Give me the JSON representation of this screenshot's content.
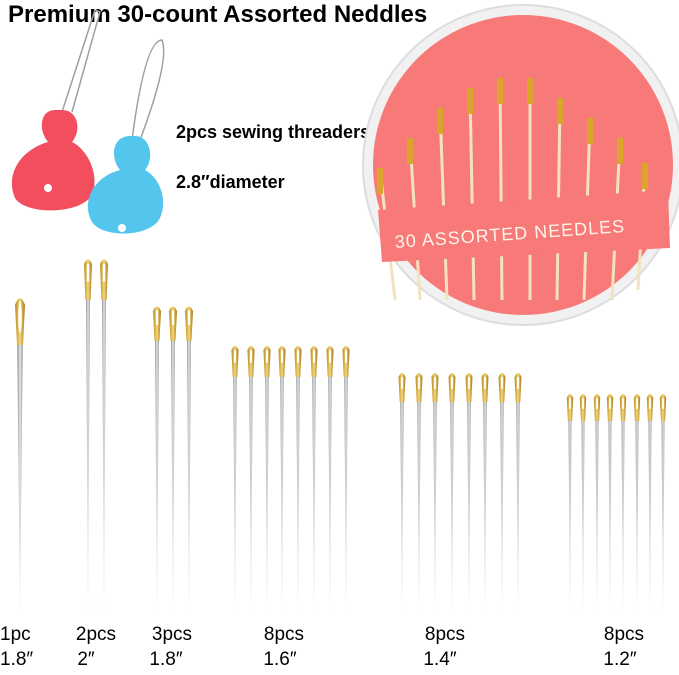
{
  "title": "Premium 30-count Assorted Neddles",
  "threaders_text": "2pcs sewing threaders",
  "diameter_text": "2.8″diameter",
  "case_label": "30 ASSORTED NEEDLES",
  "groups": [
    {
      "count": "1pc",
      "length": "1.8″"
    },
    {
      "count": "2pcs",
      "length": "2″"
    },
    {
      "count": "3pcs",
      "length": "1.8″"
    },
    {
      "count": "8pcs",
      "length": "1.6″"
    },
    {
      "count": "8pcs",
      "length": "1.4″"
    },
    {
      "count": "8pcs",
      "length": "1.2″"
    }
  ]
}
